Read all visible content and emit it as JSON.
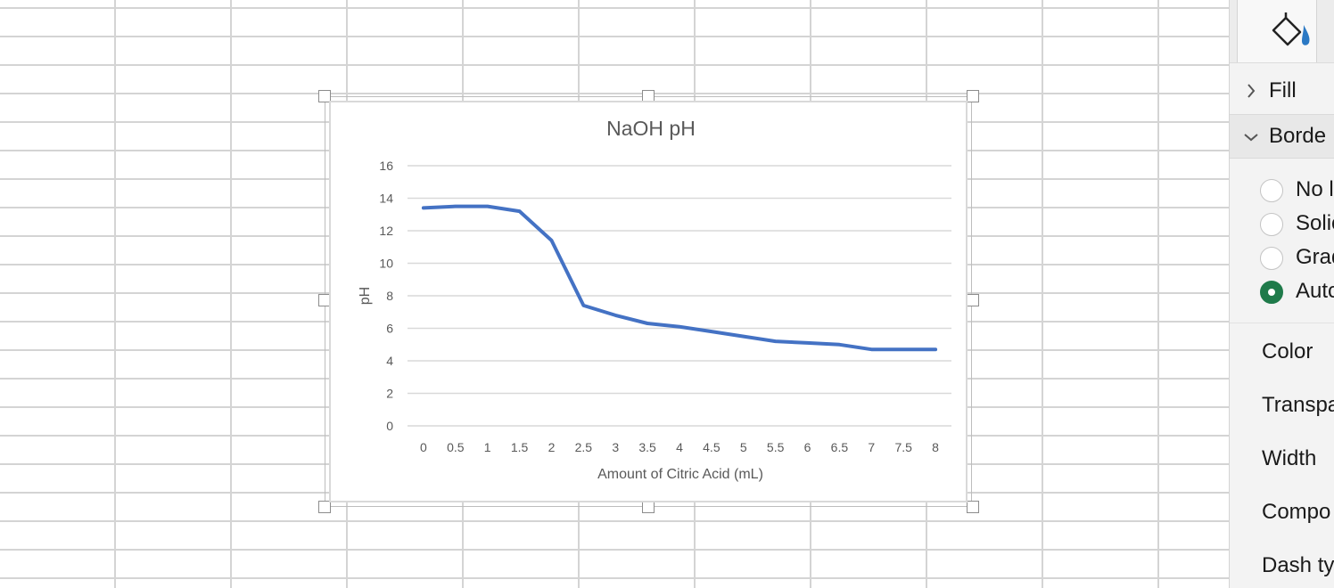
{
  "chart_data": {
    "type": "line",
    "title": "NaOH pH",
    "xlabel": "Amount of Citric Acid (mL)",
    "ylabel": "pH",
    "x": [
      0,
      0.5,
      1,
      1.5,
      2,
      2.5,
      3,
      3.5,
      4,
      4.5,
      5,
      5.5,
      6,
      6.5,
      7,
      7.5,
      8
    ],
    "categories": [
      "0",
      "0.5",
      "1",
      "1.5",
      "2",
      "2.5",
      "3",
      "3.5",
      "4",
      "4.5",
      "5",
      "5.5",
      "6",
      "6.5",
      "7",
      "7.5",
      "8"
    ],
    "series": [
      {
        "values": [
          13.4,
          13.5,
          13.5,
          13.2,
          11.4,
          7.4,
          6.8,
          6.3,
          6.1,
          5.8,
          5.5,
          5.2,
          5.1,
          5.0,
          4.7,
          4.7,
          4.7
        ],
        "color": "#4472c4"
      }
    ],
    "ylim": [
      0,
      16
    ],
    "yticks": [
      0,
      2,
      4,
      6,
      8,
      10,
      12,
      14,
      16
    ],
    "grid": true,
    "legend": "none"
  },
  "format_pane": {
    "tab_icon": "paint-bucket-icon",
    "sections": {
      "fill": {
        "label": "Fill",
        "state": "collapsed"
      },
      "border": {
        "label": "Borde",
        "state": "expanded"
      }
    },
    "border_options": [
      {
        "label": "No l",
        "checked": false
      },
      {
        "label": "Solic",
        "checked": false
      },
      {
        "label": "Grad",
        "checked": false
      },
      {
        "label": "Autc",
        "checked": true
      }
    ],
    "properties": [
      "Color",
      "Transpa",
      "Width",
      "Compo",
      "Dash ty"
    ],
    "accent_color": "#1f7a4a"
  }
}
